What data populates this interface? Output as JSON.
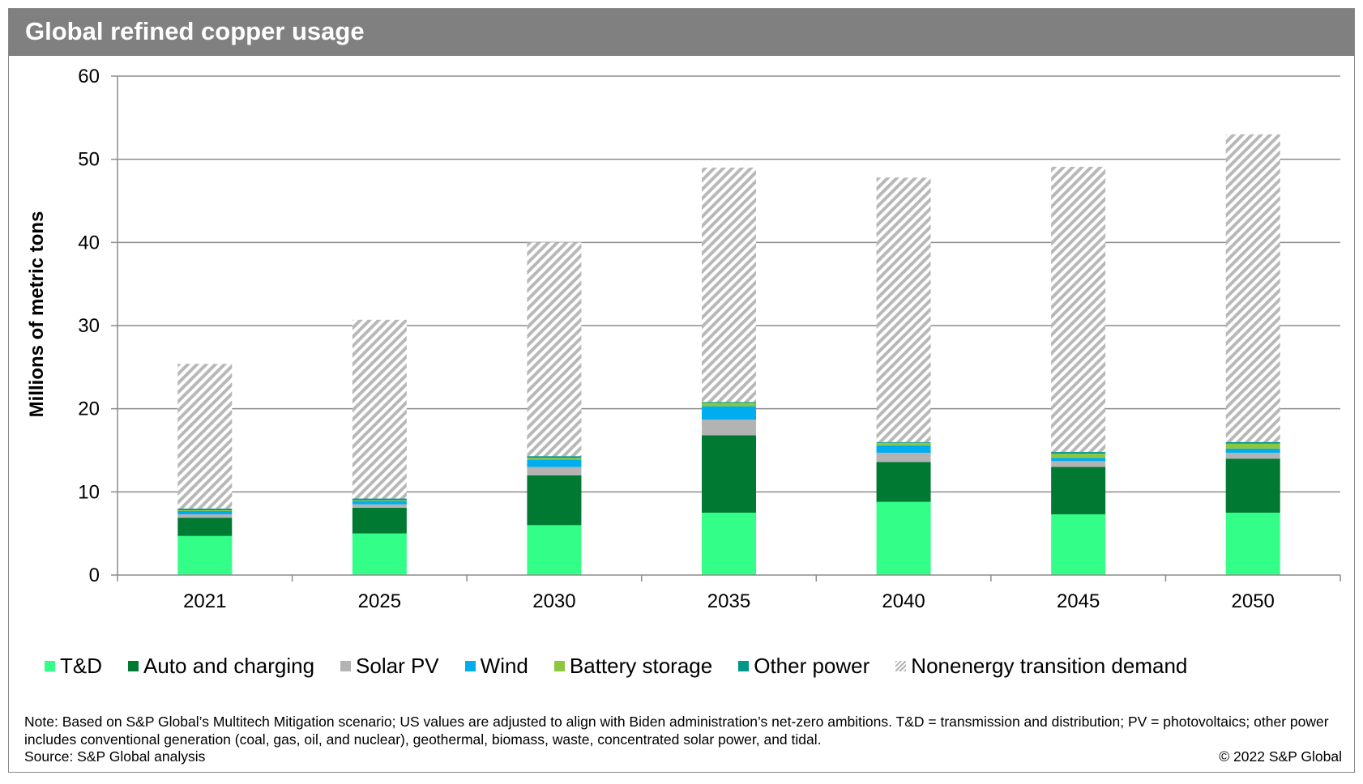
{
  "chart_data": {
    "type": "bar",
    "stacked": true,
    "title": "Global refined copper usage",
    "ylabel": "Millions of metric tons",
    "xlabel": "",
    "ylim": [
      0,
      60
    ],
    "yticks": [
      0,
      10,
      20,
      30,
      40,
      50,
      60
    ],
    "grid": true,
    "legend_position": "bottom",
    "categories": [
      "2021",
      "2025",
      "2030",
      "2035",
      "2040",
      "2045",
      "2050"
    ],
    "series": [
      {
        "name": "T&D",
        "color": "#33ff88",
        "values": [
          4.7,
          5.0,
          6.0,
          7.5,
          8.8,
          7.3,
          7.5
        ]
      },
      {
        "name": "Auto and charging",
        "color": "#007a33",
        "values": [
          2.2,
          3.1,
          6.0,
          9.3,
          4.8,
          5.7,
          6.5
        ]
      },
      {
        "name": "Solar PV",
        "color": "#b3b3b3",
        "values": [
          0.4,
          0.4,
          1.0,
          1.9,
          1.1,
          0.7,
          0.7
        ]
      },
      {
        "name": "Wind",
        "color": "#00aeef",
        "values": [
          0.4,
          0.4,
          0.9,
          1.6,
          0.9,
          0.4,
          0.5
        ]
      },
      {
        "name": "Battery storage",
        "color": "#8dc63f",
        "values": [
          0.1,
          0.1,
          0.2,
          0.4,
          0.3,
          0.5,
          0.6
        ]
      },
      {
        "name": "Other power",
        "color": "#009688",
        "values": [
          0.2,
          0.2,
          0.2,
          0.1,
          0.1,
          0.2,
          0.2
        ]
      },
      {
        "name": "Nonenergy transition demand",
        "color": "hatch",
        "values": [
          17.4,
          21.5,
          25.7,
          28.2,
          31.8,
          34.3,
          37.0
        ]
      }
    ],
    "totals": [
      25.4,
      30.7,
      40.0,
      49.0,
      47.8,
      49.1,
      53.0
    ]
  },
  "header": {
    "title": "Global refined copper usage"
  },
  "footer": {
    "note": "Note: Based on S&P Global’s Multitech Mitigation scenario; US values are adjusted to align with Biden administration’s net-zero ambitions. T&D = transmission and distribution; PV = photovoltaics; other power includes conventional generation (coal, gas, oil, and nuclear), geothermal, biomass, waste, concentrated solar power, and tidal.",
    "source": "Source: S&P Global analysis",
    "copyright": "© 2022 S&P Global"
  }
}
